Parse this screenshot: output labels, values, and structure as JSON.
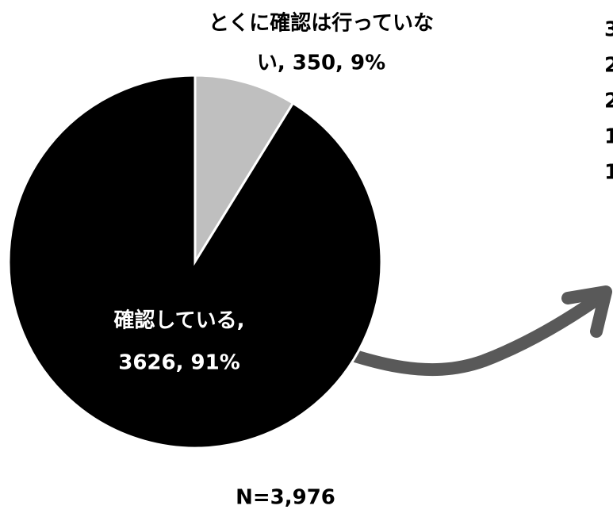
{
  "chart_data": {
    "type": "pie",
    "categories": [
      "とくに確認は行っていない",
      "確認している"
    ],
    "values": [
      350,
      3626
    ],
    "colors": [
      "#bfbfbf",
      "#000000"
    ],
    "data_labels": [
      [
        "とくに確認は行っていな",
        "い, 350, 9%"
      ],
      [
        "確認している,",
        "3626, 91%"
      ]
    ],
    "note": "N=3,976"
  },
  "clipped_labels": [
    "3",
    "2",
    "2",
    "1",
    "1"
  ]
}
